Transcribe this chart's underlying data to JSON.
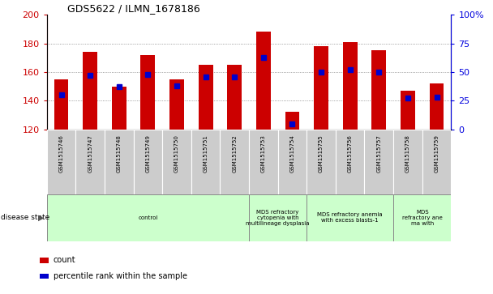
{
  "title": "GDS5622 / ILMN_1678186",
  "samples": [
    "GSM1515746",
    "GSM1515747",
    "GSM1515748",
    "GSM1515749",
    "GSM1515750",
    "GSM1515751",
    "GSM1515752",
    "GSM1515753",
    "GSM1515754",
    "GSM1515755",
    "GSM1515756",
    "GSM1515757",
    "GSM1515758",
    "GSM1515759"
  ],
  "counts": [
    155,
    174,
    150,
    172,
    155,
    165,
    165,
    188,
    132,
    178,
    181,
    175,
    147,
    152
  ],
  "percentile_ranks": [
    30,
    47,
    37,
    48,
    38,
    46,
    46,
    63,
    5,
    50,
    52,
    50,
    27,
    28
  ],
  "ylim_left": [
    120,
    200
  ],
  "ylim_right": [
    0,
    100
  ],
  "y_ticks_left": [
    120,
    140,
    160,
    180,
    200
  ],
  "y_ticks_right": [
    0,
    25,
    50,
    75,
    100
  ],
  "bar_color": "#cc0000",
  "marker_color": "#0000cc",
  "bar_bottom": 120,
  "groups": [
    {
      "label": "control",
      "start": 0,
      "end": 7
    },
    {
      "label": "MDS refractory\ncytopenia with\nmultilineage dysplasia",
      "start": 7,
      "end": 9
    },
    {
      "label": "MDS refractory anemia\nwith excess blasts-1",
      "start": 9,
      "end": 12
    },
    {
      "label": "MDS\nrefractory ane\nma with",
      "start": 12,
      "end": 14
    }
  ],
  "group_color": "#ccffcc",
  "tick_bg_color": "#cccccc",
  "disease_state_label": "disease state",
  "legend_count": "count",
  "legend_percentile": "percentile rank within the sample",
  "grid_color": "#888888",
  "right_axis_color": "#0000dd",
  "left_axis_color": "#cc0000"
}
